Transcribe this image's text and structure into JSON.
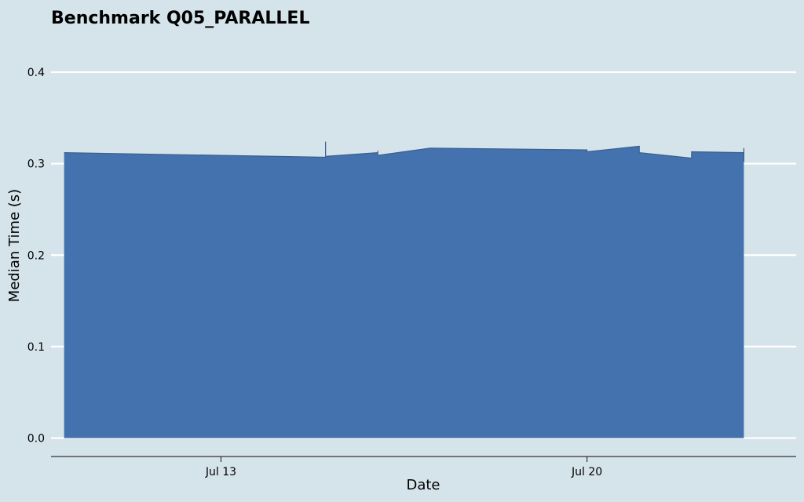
{
  "chart_data": {
    "type": "area",
    "title": "Benchmark Q05_PARALLEL",
    "xlabel": "Date",
    "ylabel": "Median Time (s)",
    "ylim": [
      0,
      0.42
    ],
    "xlim": [
      "2025-07-09T18:00",
      "2025-07-24T00:00"
    ],
    "grid": "horizontal",
    "yticks": [
      {
        "value": 0.0,
        "label": "0.0"
      },
      {
        "value": 0.1,
        "label": "0.1"
      },
      {
        "value": 0.2,
        "label": "0.2"
      },
      {
        "value": 0.3,
        "label": "0.3"
      },
      {
        "value": 0.4,
        "label": "0.4"
      }
    ],
    "xticks": [
      {
        "value": "2025-07-13",
        "label": "Jul 13"
      },
      {
        "value": "2025-07-20",
        "label": "Jul 20"
      }
    ],
    "series": [
      {
        "color": "#4472ae",
        "x": [
          "2025-07-10T00:00",
          "2025-07-15T00:00",
          "2025-07-15T00:00",
          "2025-07-15T00:00",
          "2025-07-16T00:00",
          "2025-07-16T00:00",
          "2025-07-16T00:00",
          "2025-07-17T00:00",
          "2025-07-20T00:00",
          "2025-07-20T00:00",
          "2025-07-21T00:00",
          "2025-07-21T00:00",
          "2025-07-22T00:00",
          "2025-07-22T00:00",
          "2025-07-23T00:00",
          "2025-07-23T00:00",
          "2025-07-23T00:00"
        ],
        "values": [
          0.312,
          0.307,
          0.324,
          0.308,
          0.312,
          0.314,
          0.309,
          0.317,
          0.315,
          0.313,
          0.319,
          0.312,
          0.306,
          0.313,
          0.312,
          0.317,
          0.302
        ]
      }
    ]
  }
}
